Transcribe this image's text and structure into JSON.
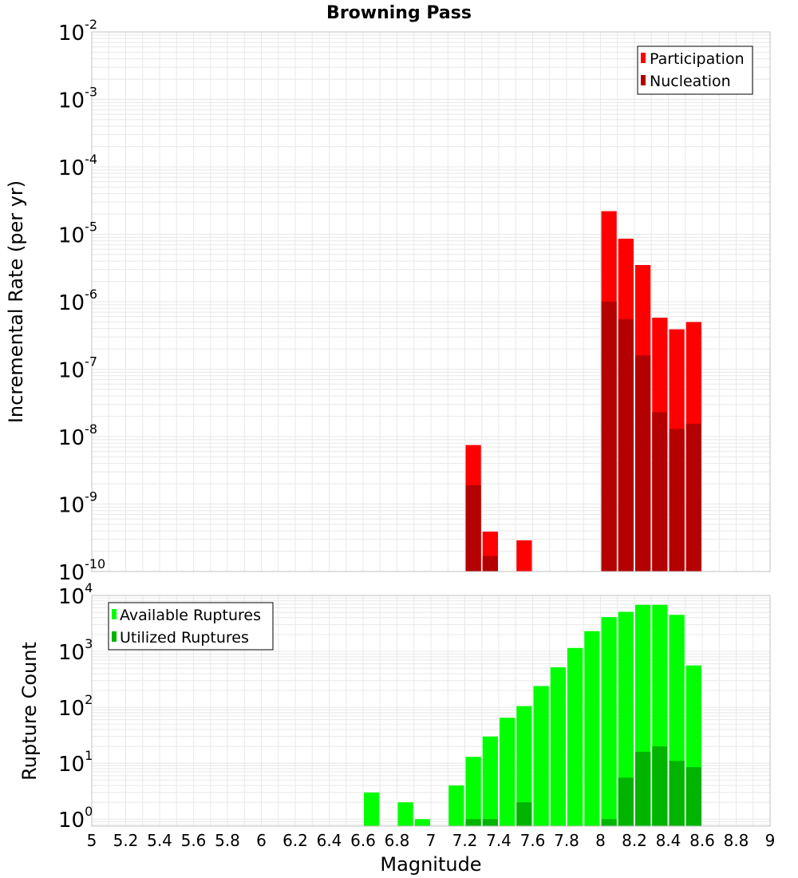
{
  "chart_data": [
    {
      "type": "bar",
      "title": "Browning Pass",
      "xlabel": "",
      "ylabel": "Incremental Rate (per yr)",
      "yscale": "log",
      "ylim": [
        1e-10,
        0.01
      ],
      "xlim": [
        5,
        9
      ],
      "grid": true,
      "legend_position": "top-right",
      "y_ticks": [
        {
          "base": "10",
          "exp": "-2"
        },
        {
          "base": "10",
          "exp": "-3"
        },
        {
          "base": "10",
          "exp": "-4"
        },
        {
          "base": "10",
          "exp": "-5"
        },
        {
          "base": "10",
          "exp": "-6"
        },
        {
          "base": "10",
          "exp": "-7"
        },
        {
          "base": "10",
          "exp": "-8"
        },
        {
          "base": "10",
          "exp": "-9"
        },
        {
          "base": "10",
          "exp": "-10"
        }
      ],
      "x": [
        7.25,
        7.35,
        7.55,
        8.05,
        8.15,
        8.25,
        8.35,
        8.45,
        8.55
      ],
      "series": [
        {
          "name": "Participation",
          "color": "#ff0000",
          "values": [
            7.5e-09,
            3.9e-10,
            2.9e-10,
            2.2e-05,
            8.6e-06,
            3.5e-06,
            5.8e-07,
            3.9e-07,
            5e-07
          ]
        },
        {
          "name": "Nucleation",
          "color": "#b40000",
          "values": [
            1.9e-09,
            1.7e-10,
            null,
            1e-06,
            5.5e-07,
            1.6e-07,
            2.3e-08,
            1.3e-08,
            1.55e-08
          ]
        }
      ]
    },
    {
      "type": "bar",
      "title": "",
      "xlabel": "Magnitude",
      "ylabel": "Rupture Count",
      "yscale": "log",
      "ylim": [
        0.75,
        10000
      ],
      "xlim": [
        5,
        9
      ],
      "grid": true,
      "legend_position": "top-left",
      "y_ticks": [
        {
          "base": "10",
          "exp": "4"
        },
        {
          "base": "10",
          "exp": "3"
        },
        {
          "base": "10",
          "exp": "2"
        },
        {
          "base": "10",
          "exp": "1"
        },
        {
          "base": "10",
          "exp": "0"
        }
      ],
      "x_ticks": [
        "5",
        "5.2",
        "5.4",
        "5.6",
        "5.8",
        "6",
        "6.2",
        "6.4",
        "6.6",
        "6.8",
        "7",
        "7.2",
        "7.4",
        "7.6",
        "7.8",
        "8",
        "8.2",
        "8.4",
        "8.6",
        "8.8",
        "9"
      ],
      "x": [
        6.65,
        6.85,
        6.95,
        7.15,
        7.25,
        7.35,
        7.45,
        7.55,
        7.65,
        7.75,
        7.85,
        7.95,
        8.05,
        8.15,
        8.25,
        8.35,
        8.45,
        8.55
      ],
      "series": [
        {
          "name": "Available Ruptures",
          "color": "#00ff00",
          "values": [
            3,
            2,
            1,
            4,
            13,
            30,
            65,
            105,
            240,
            520,
            1150,
            2300,
            4100,
            5100,
            6800,
            6800,
            4500,
            560
          ]
        },
        {
          "name": "Utilized Ruptures",
          "color": "#00b400",
          "values": [
            null,
            null,
            null,
            null,
            1,
            1,
            null,
            2,
            null,
            null,
            null,
            null,
            1,
            5.5,
            16,
            20,
            11,
            8.5
          ]
        }
      ]
    }
  ]
}
